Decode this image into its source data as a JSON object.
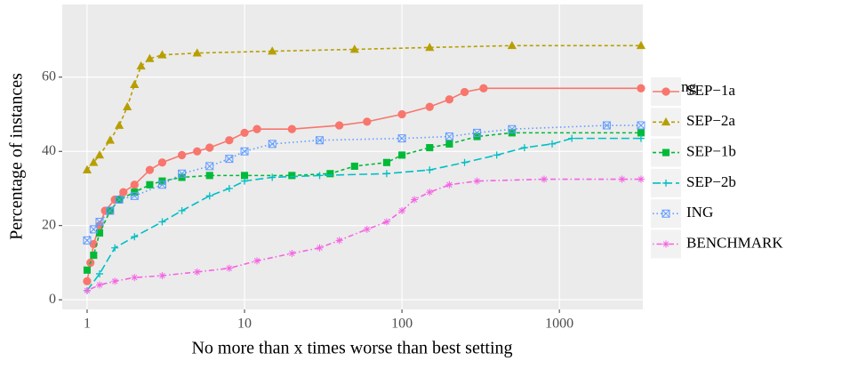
{
  "chart_data": {
    "type": "line",
    "x_label": "No more than x times worse than best setting",
    "y_label": "Percentage of instances",
    "xscale": "log",
    "xlim": [
      0.695,
      3390
    ],
    "ylim": [
      -2.6,
      79.6
    ],
    "xticks": [
      1,
      10,
      100,
      1000
    ],
    "yticks": [
      0,
      20,
      40,
      60
    ],
    "grid": true,
    "legend_title": "Setting",
    "legend_position": "right",
    "series": [
      {
        "name": "SEP−1a",
        "color": "#F8766D",
        "linestyle": "solid",
        "marker": "circle",
        "x": [
          1,
          1.05,
          1.1,
          1.2,
          1.3,
          1.5,
          1.7,
          2,
          2.5,
          3,
          4,
          5,
          6,
          8,
          10,
          12,
          20,
          40,
          60,
          100,
          150,
          200,
          250,
          330,
          3300
        ],
        "values": [
          5,
          10,
          15,
          20,
          24,
          27,
          29,
          31,
          35,
          37,
          39,
          40,
          41,
          43,
          45,
          46,
          46,
          47,
          48,
          50,
          52,
          54,
          56,
          57,
          57
        ]
      },
      {
        "name": "SEP−2a",
        "color": "#B79F00",
        "linestyle": "dashed",
        "marker": "triangle",
        "x": [
          1,
          1.1,
          1.2,
          1.4,
          1.6,
          1.8,
          2,
          2.2,
          2.5,
          3,
          5,
          15,
          50,
          150,
          500,
          3300
        ],
        "values": [
          35,
          37,
          39,
          43,
          47,
          52,
          58,
          63,
          65,
          66,
          66.5,
          67,
          67.5,
          68,
          68.5,
          68.5
        ]
      },
      {
        "name": "SEP−1b",
        "color": "#00BA38",
        "linestyle": "dashed",
        "marker": "square",
        "x": [
          1,
          1.1,
          1.2,
          1.4,
          1.6,
          2,
          2.5,
          3,
          4,
          6,
          10,
          20,
          35,
          50,
          80,
          100,
          150,
          200,
          300,
          500,
          3300
        ],
        "values": [
          8,
          12,
          18,
          24,
          27,
          29,
          31,
          32,
          33,
          33.5,
          33.5,
          33.5,
          34,
          36,
          37,
          39,
          41,
          42,
          44,
          45,
          45
        ]
      },
      {
        "name": "SEP−2b",
        "color": "#00BFC4",
        "linestyle": "longdash",
        "marker": "plus",
        "x": [
          1,
          1.2,
          1.5,
          2,
          3,
          4,
          6,
          8,
          10,
          15,
          30,
          80,
          150,
          250,
          400,
          600,
          900,
          1200,
          3300
        ],
        "values": [
          2.5,
          7,
          14,
          17,
          21,
          24,
          28,
          30,
          32,
          33,
          33.5,
          34,
          35,
          37,
          39,
          41,
          42,
          43.5,
          43.5
        ]
      },
      {
        "name": "ING",
        "color": "#619CFF",
        "linestyle": "dotted",
        "marker": "squarex",
        "x": [
          1,
          1.1,
          1.2,
          1.4,
          1.6,
          2,
          3,
          4,
          6,
          8,
          10,
          15,
          30,
          100,
          200,
          300,
          500,
          2000,
          3300
        ],
        "values": [
          16,
          19,
          21,
          24,
          27,
          28,
          31,
          34,
          36,
          38,
          40,
          42,
          43,
          43.5,
          44,
          45,
          46,
          47,
          47
        ]
      },
      {
        "name": "BENCHMARK",
        "color": "#F564E3",
        "linestyle": "dotdash",
        "marker": "asterisk",
        "x": [
          1,
          1.2,
          1.5,
          2,
          3,
          5,
          8,
          12,
          20,
          30,
          40,
          60,
          80,
          100,
          120,
          150,
          200,
          300,
          800,
          2500,
          3300
        ],
        "values": [
          2.5,
          4,
          5,
          6,
          6.5,
          7.5,
          8.5,
          10.5,
          12.5,
          14,
          16,
          19,
          21,
          24,
          27,
          29,
          31,
          32,
          32.5,
          32.5,
          32.5
        ]
      }
    ]
  }
}
